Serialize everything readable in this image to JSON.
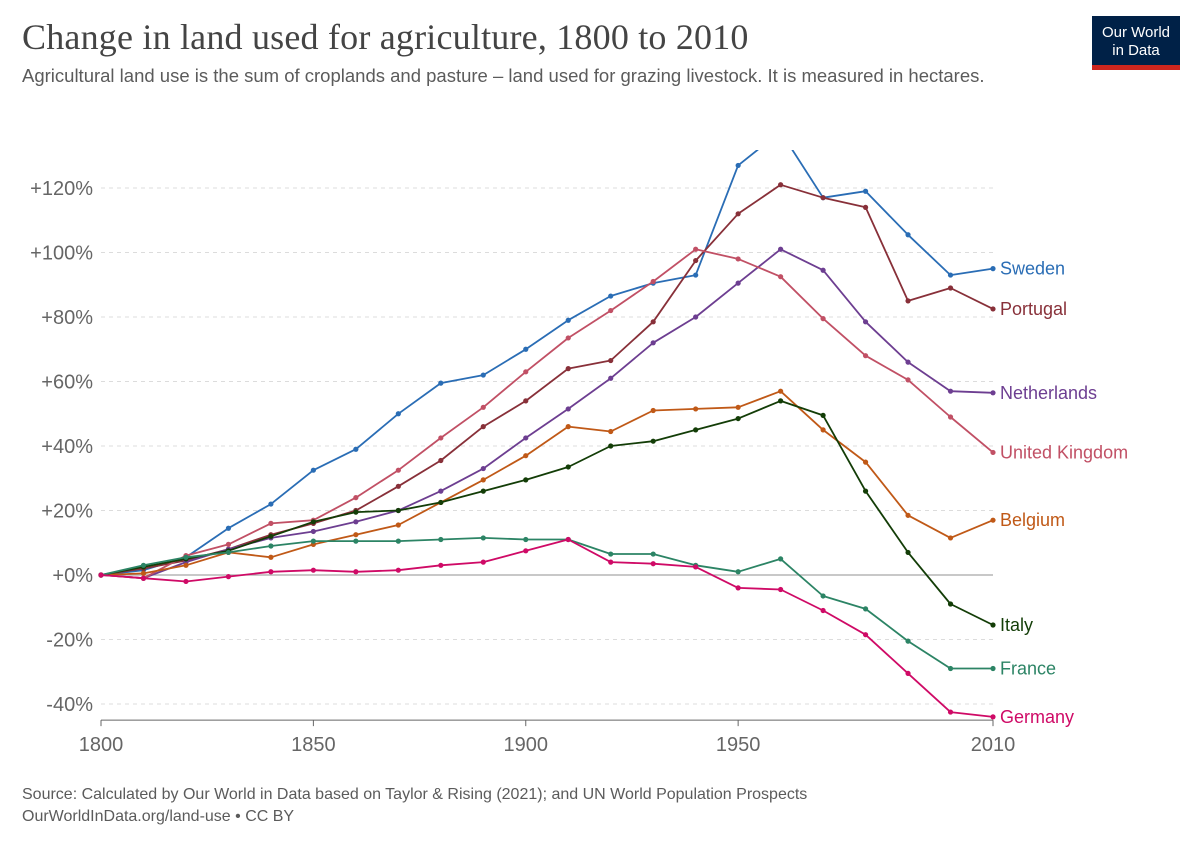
{
  "header": {
    "title": "Change in land used for agriculture, 1800 to 2010",
    "subtitle": "Agricultural land use is the sum of croplands and pasture – land used for grazing livestock. It is measured in hectares."
  },
  "logo": {
    "line1": "Our World",
    "line2": "in Data",
    "bg_color": "#002147",
    "accent_color": "#ce261e"
  },
  "footer": {
    "source": "Source: Calculated by Our World in Data based on Taylor & Rising (2021); and UN World Population Prospects",
    "url": "OurWorldInData.org/land-use • CC BY"
  },
  "chart_data": {
    "type": "line",
    "title": "Change in land used for agriculture, 1800 to 2010",
    "xlabel": "",
    "ylabel": "",
    "xlim": [
      1800,
      2010
    ],
    "ylim": [
      -45,
      135
    ],
    "x_ticks": [
      1800,
      1850,
      1900,
      1950,
      2010
    ],
    "y_ticks": [
      -40,
      -20,
      0,
      20,
      40,
      60,
      80,
      100,
      120
    ],
    "y_tick_labels": [
      "-40%",
      "-20%",
      "+0%",
      "+20%",
      "+40%",
      "+60%",
      "+80%",
      "+100%",
      "+120%"
    ],
    "grid": "horizontal dashed",
    "legend": "line-end labels",
    "x": [
      1800,
      1810,
      1820,
      1830,
      1840,
      1850,
      1860,
      1870,
      1880,
      1890,
      1900,
      1910,
      1920,
      1930,
      1940,
      1950,
      1960,
      1970,
      1980,
      1990,
      2000,
      2010
    ],
    "series": [
      {
        "name": "Sweden",
        "color": "#2a6db5",
        "values": [
          0,
          1.5,
          5.5,
          14.5,
          22,
          32.5,
          39,
          50,
          59.5,
          62,
          70,
          79,
          86.5,
          90.5,
          93,
          127,
          137.5,
          117,
          119,
          105.5,
          93,
          95
        ]
      },
      {
        "name": "Portugal",
        "color": "#883039",
        "values": [
          0,
          2,
          4.5,
          8,
          12.5,
          16,
          20,
          27.5,
          35.5,
          46,
          54,
          64,
          66.5,
          78.5,
          97.5,
          112,
          121,
          117,
          114,
          85,
          89,
          82.5
        ]
      },
      {
        "name": "Netherlands",
        "color": "#6d3e91",
        "values": [
          0,
          -1,
          4,
          8,
          11.5,
          13.5,
          16.5,
          20,
          26,
          33,
          42.5,
          51.5,
          61,
          72,
          80,
          90.5,
          101,
          94.5,
          78.5,
          66,
          57,
          56.5
        ]
      },
      {
        "name": "United Kingdom",
        "color": "#c15065",
        "values": [
          0,
          -1,
          6,
          9.5,
          16,
          17,
          24,
          32.5,
          42.5,
          52,
          63,
          73.5,
          82,
          91,
          101,
          98,
          92.5,
          79.5,
          68,
          60.5,
          49,
          38
        ]
      },
      {
        "name": "Belgium",
        "color": "#c05917",
        "values": [
          0,
          0.5,
          3,
          7,
          5.5,
          9.5,
          12.5,
          15.5,
          22.5,
          29.5,
          37,
          46,
          44.5,
          51,
          51.5,
          52,
          57,
          45,
          35,
          18.5,
          11.5,
          17
        ]
      },
      {
        "name": "Italy",
        "color": "#133d07",
        "values": [
          0,
          2.5,
          5,
          7.5,
          12,
          16.5,
          19.5,
          20,
          22.5,
          26,
          29.5,
          33.5,
          40,
          41.5,
          45,
          48.5,
          54,
          49.5,
          26,
          7,
          -9,
          -15.5
        ]
      },
      {
        "name": "France",
        "color": "#2c8465",
        "values": [
          0,
          3,
          5.5,
          7,
          9,
          10.5,
          10.5,
          10.5,
          11,
          11.5,
          11,
          11,
          6.5,
          6.5,
          3,
          1,
          5,
          -6.5,
          -10.5,
          -20.5,
          -29,
          -29
        ]
      },
      {
        "name": "Germany",
        "color": "#cf0a66",
        "values": [
          0,
          -1,
          -2,
          -0.5,
          1,
          1.5,
          1,
          1.5,
          3,
          4,
          7.5,
          11,
          4,
          3.5,
          2.5,
          -4,
          -4.5,
          -11,
          -18.5,
          -30.5,
          -42.5,
          -44
        ]
      }
    ]
  }
}
